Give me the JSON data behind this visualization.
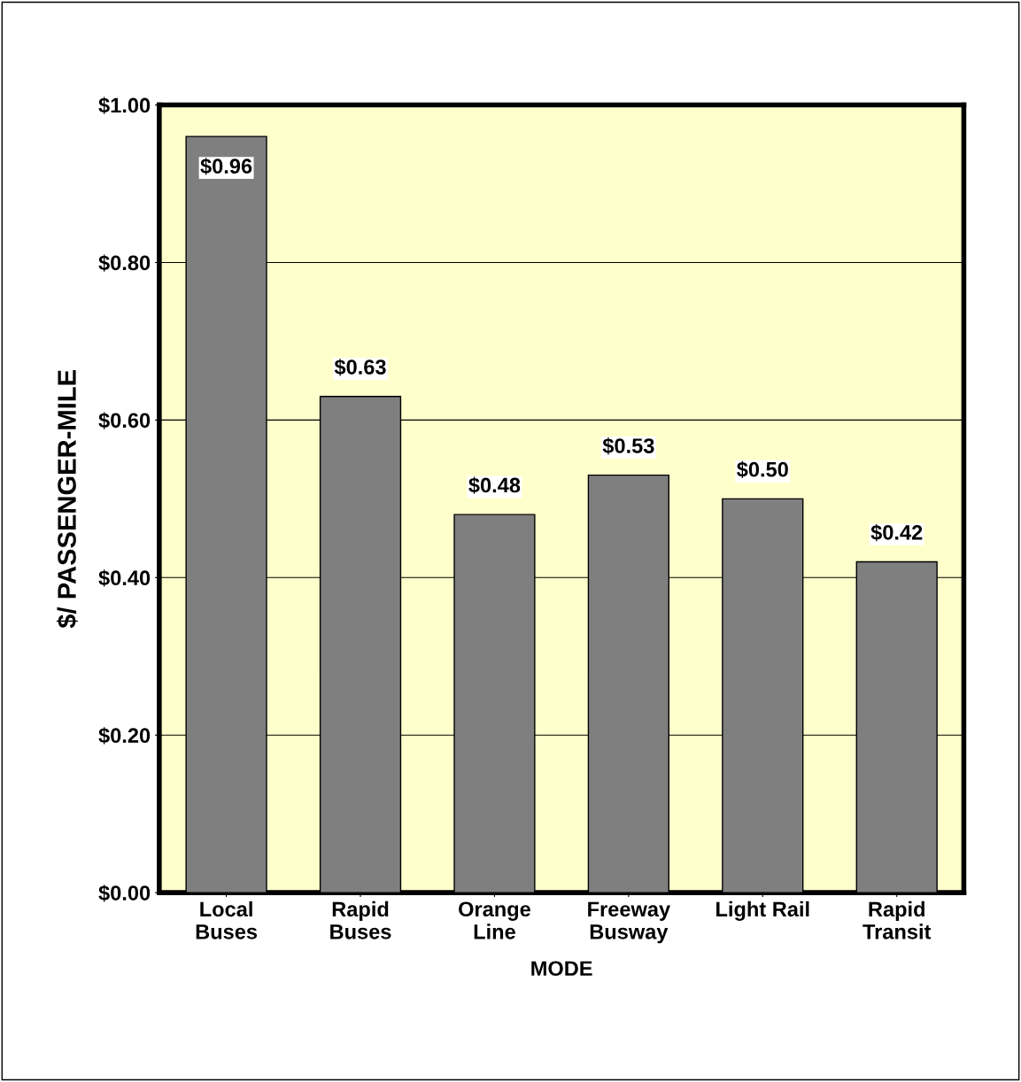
{
  "chart_data": {
    "type": "bar",
    "xlabel": "MODE",
    "ylabel": "$/ PASSENGER-MILE",
    "categories": [
      "Local\nBuses",
      "Rapid\nBuses",
      "Orange\nLine",
      "Freeway\nBusway",
      "Light Rail",
      "Rapid\nTransit"
    ],
    "values": [
      0.96,
      0.63,
      0.48,
      0.53,
      0.5,
      0.42
    ],
    "value_labels": [
      "$0.96",
      "$0.63",
      "$0.48",
      "$0.53",
      "$0.50",
      "$0.42"
    ],
    "color": "#7f7f7f",
    "ylim": [
      0,
      1.0
    ],
    "yticks": [
      {
        "value": 0,
        "label": "$0.00"
      },
      {
        "value": 0.2,
        "label": "$0.20"
      },
      {
        "value": 0.4,
        "label": "$0.40"
      },
      {
        "value": 0.6,
        "label": "$0.60"
      },
      {
        "value": 0.8,
        "label": "$0.80"
      },
      {
        "value": 1.0,
        "label": "$1.00"
      }
    ],
    "grid": "y",
    "legend": false
  }
}
